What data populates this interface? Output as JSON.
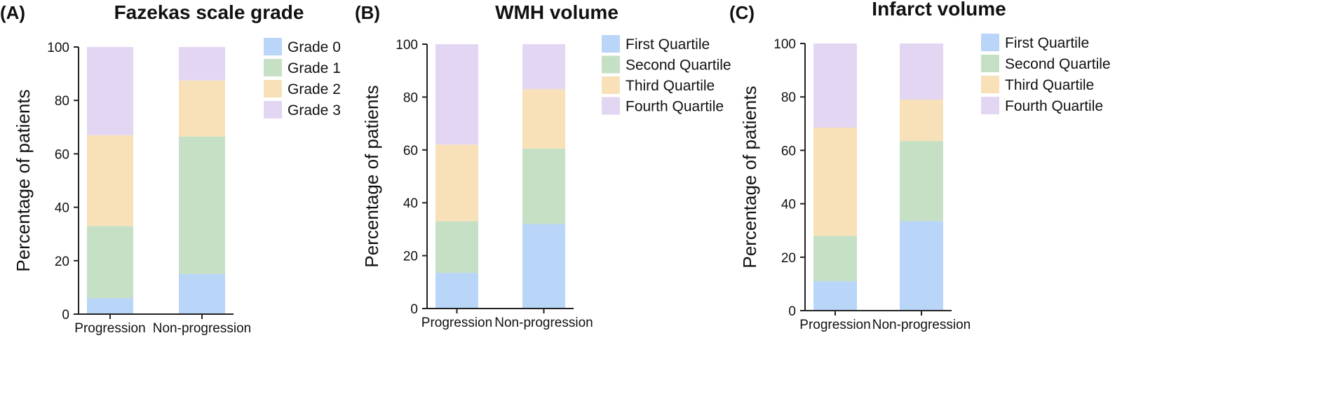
{
  "colors": {
    "blue": "#b9d5f7",
    "green": "#c6e0c5",
    "orange": "#f8e1b9",
    "purple": "#e3d6f3",
    "axis": "#222222",
    "text": "#111111"
  },
  "chart_data": [
    {
      "type": "bar",
      "stacked": true,
      "panel_label": "(A)",
      "title": "Fazekas scale grade",
      "xlabel": "",
      "ylabel": "Percentage of patients",
      "ylim": [
        0,
        100
      ],
      "yticks": [
        0,
        20,
        40,
        60,
        80,
        100
      ],
      "grid": false,
      "legend_position": "right",
      "categories": [
        "Progression",
        "Non-progression"
      ],
      "series": [
        {
          "name": "Grade 0",
          "color": "#b9d5f7",
          "values": [
            6,
            15
          ]
        },
        {
          "name": "Grade 1",
          "color": "#c6e0c5",
          "values": [
            27,
            51.5
          ]
        },
        {
          "name": "Grade 2",
          "color": "#f8e1b9",
          "values": [
            34,
            21
          ]
        },
        {
          "name": "Grade 3",
          "color": "#e3d6f3",
          "values": [
            33,
            12.5
          ]
        }
      ]
    },
    {
      "type": "bar",
      "stacked": true,
      "panel_label": "(B)",
      "title": "WMH volume",
      "xlabel": "",
      "ylabel": "Percentage of patients",
      "ylim": [
        0,
        100
      ],
      "yticks": [
        0,
        20,
        40,
        60,
        80,
        100
      ],
      "grid": false,
      "legend_position": "right",
      "categories": [
        "Progression",
        "Non-progression"
      ],
      "series": [
        {
          "name": "First Quartile",
          "color": "#b9d5f7",
          "values": [
            13.5,
            32
          ]
        },
        {
          "name": "Second Quartile",
          "color": "#c6e0c5",
          "values": [
            19.5,
            28.5
          ]
        },
        {
          "name": "Third Quartile",
          "color": "#f8e1b9",
          "values": [
            29,
            22.5
          ]
        },
        {
          "name": "Fourth Quartile",
          "color": "#e3d6f3",
          "values": [
            38,
            17
          ]
        }
      ]
    },
    {
      "type": "bar",
      "stacked": true,
      "panel_label": "(C)",
      "title": "Infarct volume",
      "xlabel": "",
      "ylabel": "Percentage of patients",
      "ylim": [
        0,
        100
      ],
      "yticks": [
        0,
        20,
        40,
        60,
        80,
        100
      ],
      "grid": false,
      "legend_position": "right",
      "categories": [
        "Progression",
        "Non-progression"
      ],
      "series": [
        {
          "name": "First Quartile",
          "color": "#b9d5f7",
          "values": [
            11,
            33.5
          ]
        },
        {
          "name": "Second Quartile",
          "color": "#c6e0c5",
          "values": [
            17,
            30
          ]
        },
        {
          "name": "Third Quartile",
          "color": "#f8e1b9",
          "values": [
            40.5,
            15.5
          ]
        },
        {
          "name": "Fourth Quartile",
          "color": "#e3d6f3",
          "values": [
            31.5,
            21
          ]
        }
      ]
    }
  ]
}
